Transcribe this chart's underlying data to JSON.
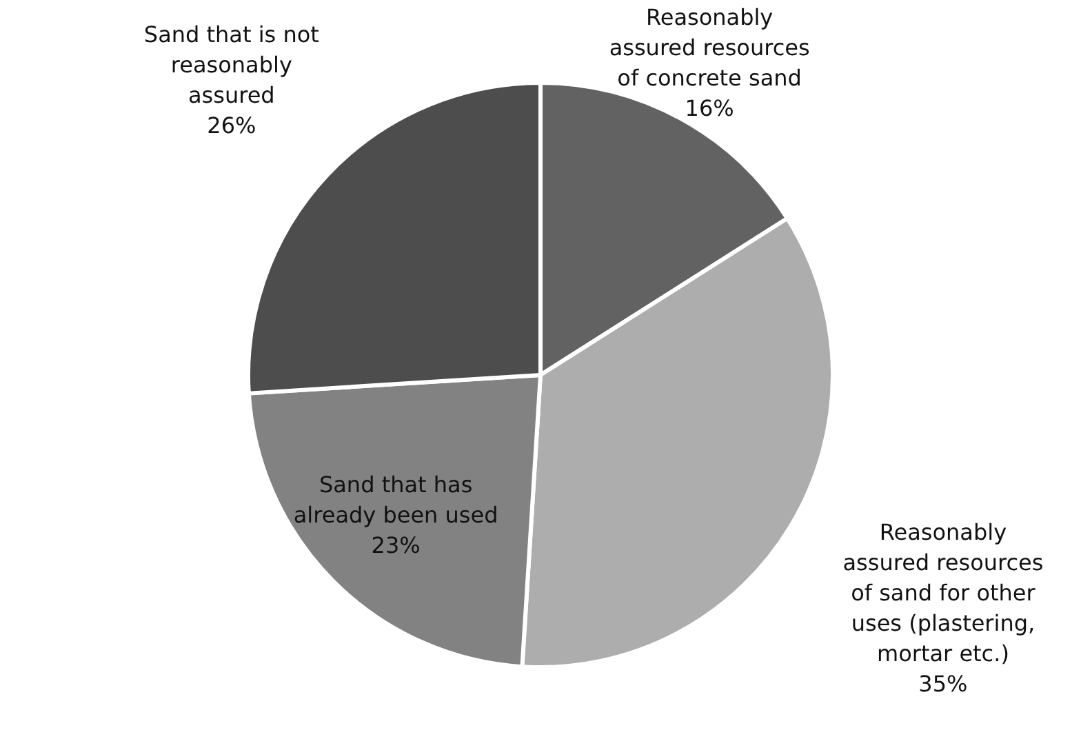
{
  "chart_data": {
    "type": "pie",
    "categories": [
      "Reasonably assured resources of concrete sand",
      "Reasonably assured resources of sand for other uses (plastering, mortar etc.)",
      "Sand that has already been used",
      "Sand that is not reasonably assured"
    ],
    "values": [
      16,
      35,
      23,
      26
    ],
    "value_labels": [
      "16%",
      "35%",
      "23%",
      "26%"
    ],
    "colors": [
      "#626262",
      "#adadad",
      "#828282",
      "#4d4d4d"
    ]
  }
}
